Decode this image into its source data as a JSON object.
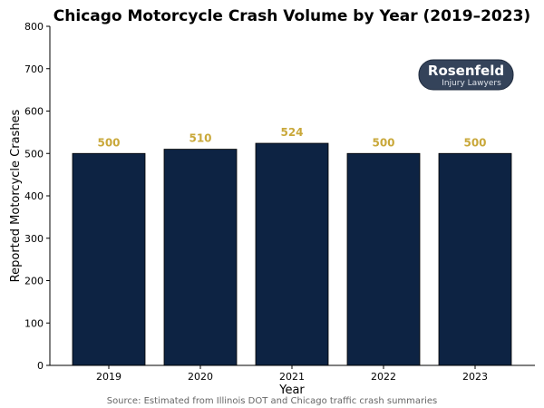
{
  "chart_data": {
    "type": "bar",
    "title": "Chicago Motorcycle Crash Volume by Year (2019–2023)",
    "xlabel": "Year",
    "ylabel": "Reported Motorcycle Crashes",
    "categories": [
      "2019",
      "2020",
      "2021",
      "2022",
      "2023"
    ],
    "values": [
      500,
      510,
      524,
      500,
      500
    ],
    "data_labels": [
      "500",
      "510",
      "524",
      "500",
      "500"
    ],
    "ylim": [
      0,
      800
    ],
    "yticks": [
      0,
      100,
      200,
      300,
      400,
      500,
      600,
      700,
      800
    ],
    "grid": false,
    "source": "Source: Estimated from Illinois DOT and Chicago traffic crash summaries",
    "colors": {
      "bar": "#0d2343",
      "label": "#c9a83a",
      "logo_bg": "#34435a"
    }
  },
  "logo": {
    "name": "Rosenfeld",
    "tagline": "Injury Lawyers"
  }
}
